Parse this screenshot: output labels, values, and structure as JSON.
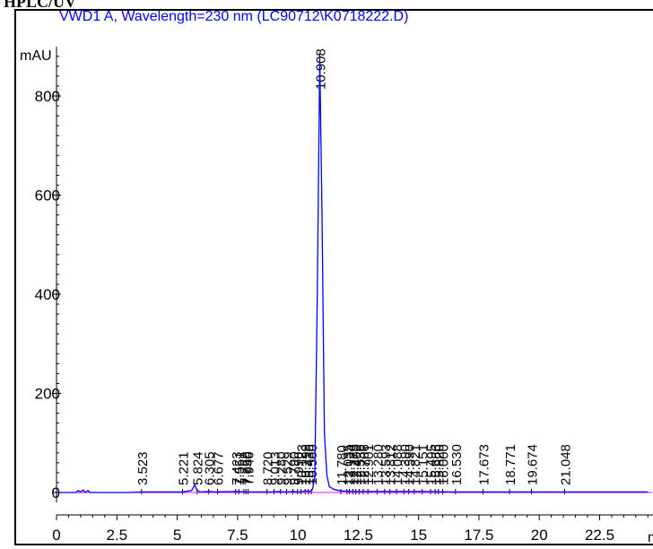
{
  "header": {
    "title": "HPLC/UV"
  },
  "chart_data": {
    "type": "line",
    "title": "VWD1 A, Wavelength=230 nm (LC90712\\K0718222.D)",
    "ylabel": "mAU",
    "xlabel": "min",
    "xlim": [
      0,
      24.5
    ],
    "ylim": [
      -45,
      960
    ],
    "x_ticks": [
      0,
      2.5,
      5,
      7.5,
      10,
      12.5,
      15,
      17.5,
      20,
      22.5
    ],
    "x_tick_labels": [
      "0",
      "2.5",
      "5",
      "7.5",
      "10",
      "12.5",
      "15",
      "17.5",
      "20",
      "22.5"
    ],
    "y_ticks": [
      0,
      200,
      400,
      600,
      800
    ],
    "y_tick_labels": [
      "0",
      "200",
      "400",
      "600",
      "800"
    ],
    "grid": false,
    "colors": {
      "signal": "#0000ff",
      "baseline": "#ff00ff",
      "axis": "#000000",
      "title": "#0000ff"
    },
    "series": [
      {
        "x": [
          0,
          0.8,
          0.9,
          1.0,
          1.1,
          1.2,
          1.3,
          1.4,
          3.0,
          3.5,
          5.2,
          5.6,
          5.72,
          5.82,
          5.95,
          6.3,
          6.6,
          7.4,
          7.9,
          8.9,
          9.2,
          9.5,
          9.8,
          10.1,
          10.3,
          10.5,
          10.6,
          10.7,
          10.8,
          10.908,
          11.0,
          11.1,
          11.2,
          11.3,
          11.5,
          11.8,
          12.3,
          13.0,
          14.0,
          15.0,
          16.5,
          17.7,
          18.8,
          19.7,
          21.0,
          24.5
        ],
        "y": [
          0,
          0,
          4,
          1,
          5,
          0,
          4,
          0,
          0,
          1,
          1,
          4,
          15,
          5,
          1,
          2,
          1,
          2,
          1,
          1,
          2,
          1,
          2,
          1,
          3,
          2,
          6,
          30,
          380,
          875,
          560,
          120,
          35,
          12,
          6,
          3,
          2,
          2,
          2,
          2,
          1,
          1,
          1,
          1,
          1,
          1
        ]
      }
    ],
    "peak_labels": [
      "3.523",
      "5.221",
      "5.824",
      "6.305",
      "6.677",
      "7.423",
      "7.551",
      "7.762",
      "7.850",
      "7.940",
      "8.720",
      "9.013",
      "9.280",
      "9.529",
      "9.790",
      "9.990",
      "10.123",
      "10.299",
      "10.430",
      "10.560",
      "10.908",
      "11.780",
      "12.035",
      "12.134",
      "12.279",
      "12.400",
      "12.536",
      "12.706",
      "12.901",
      "13.280",
      "13.593",
      "13.812",
      "14.088",
      "14.390",
      "14.590",
      "14.821",
      "15.151",
      "15.495",
      "15.686",
      "15.820",
      "16.000",
      "16.530",
      "17.673",
      "18.771",
      "19.674",
      "21.048"
    ]
  }
}
